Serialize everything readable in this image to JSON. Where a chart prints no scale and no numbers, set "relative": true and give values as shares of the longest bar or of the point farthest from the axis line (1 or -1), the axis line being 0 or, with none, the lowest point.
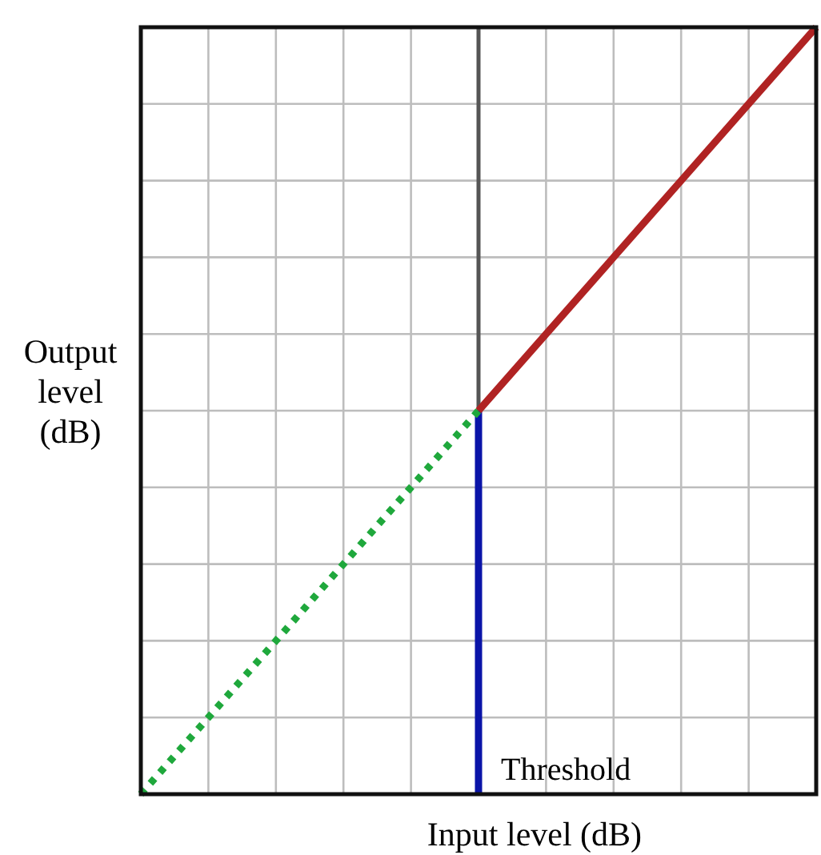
{
  "chart_data": {
    "type": "line",
    "relative": true,
    "xlabel": "Input level (dB)",
    "ylabel": "Output\nlevel\n(dB)",
    "categories": [
      null,
      null,
      null,
      null,
      null,
      null,
      null,
      null,
      null,
      null,
      null
    ],
    "grid": true,
    "series": [
      {
        "color": "#1fa83c",
        "values": [
          0,
          0.1,
          0.2,
          0.3,
          0.4,
          0.5,
          null,
          null,
          null,
          null,
          null
        ],
        "line_style": "dotted"
      },
      {
        "color": "#b02323",
        "values": [
          null,
          null,
          null,
          null,
          null,
          0.5,
          0.6,
          0.7,
          0.8,
          0.9,
          1
        ],
        "line_style": "solid"
      }
    ],
    "annotations": [
      "Threshold"
    ]
  }
}
